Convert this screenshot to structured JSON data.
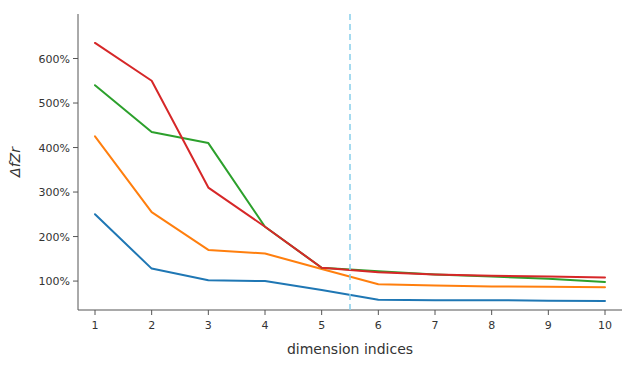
{
  "chart_data": {
    "type": "line",
    "xlabel": "dimension indices",
    "ylabel": "ΔfZr",
    "x": [
      1,
      2,
      3,
      4,
      5,
      6,
      7,
      8,
      9,
      10
    ],
    "series": [
      {
        "color": "#1f77b4",
        "values": [
          2.5,
          1.28,
          1.02,
          1.0,
          0.8,
          0.58,
          0.57,
          0.57,
          0.56,
          0.55
        ]
      },
      {
        "color": "#ff7f0e",
        "values": [
          4.25,
          2.55,
          1.7,
          1.62,
          1.27,
          0.93,
          0.9,
          0.88,
          0.87,
          0.86
        ]
      },
      {
        "color": "#2ca02c",
        "values": [
          5.4,
          4.35,
          4.1,
          2.22,
          1.3,
          1.22,
          1.15,
          1.1,
          1.05,
          0.98
        ]
      },
      {
        "color": "#d62728",
        "values": [
          6.35,
          5.5,
          3.1,
          2.22,
          1.3,
          1.2,
          1.15,
          1.12,
          1.1,
          1.08
        ]
      }
    ],
    "vline": {
      "x": 5.5,
      "color": "#87CEEB",
      "line_style": "dashed"
    },
    "xlim": [
      0.7,
      10.3
    ],
    "ylim": [
      0.35,
      7.0
    ],
    "xticks": [
      1,
      2,
      3,
      4,
      5,
      6,
      7,
      8,
      9,
      10
    ],
    "yticks": [
      {
        "value": 1.0,
        "label": "100%"
      },
      {
        "value": 2.0,
        "label": "200%"
      },
      {
        "value": 3.0,
        "label": "300%"
      },
      {
        "value": 4.0,
        "label": "400%"
      },
      {
        "value": 5.0,
        "label": "500%"
      },
      {
        "value": 6.0,
        "label": "600%"
      }
    ],
    "grid": false
  }
}
